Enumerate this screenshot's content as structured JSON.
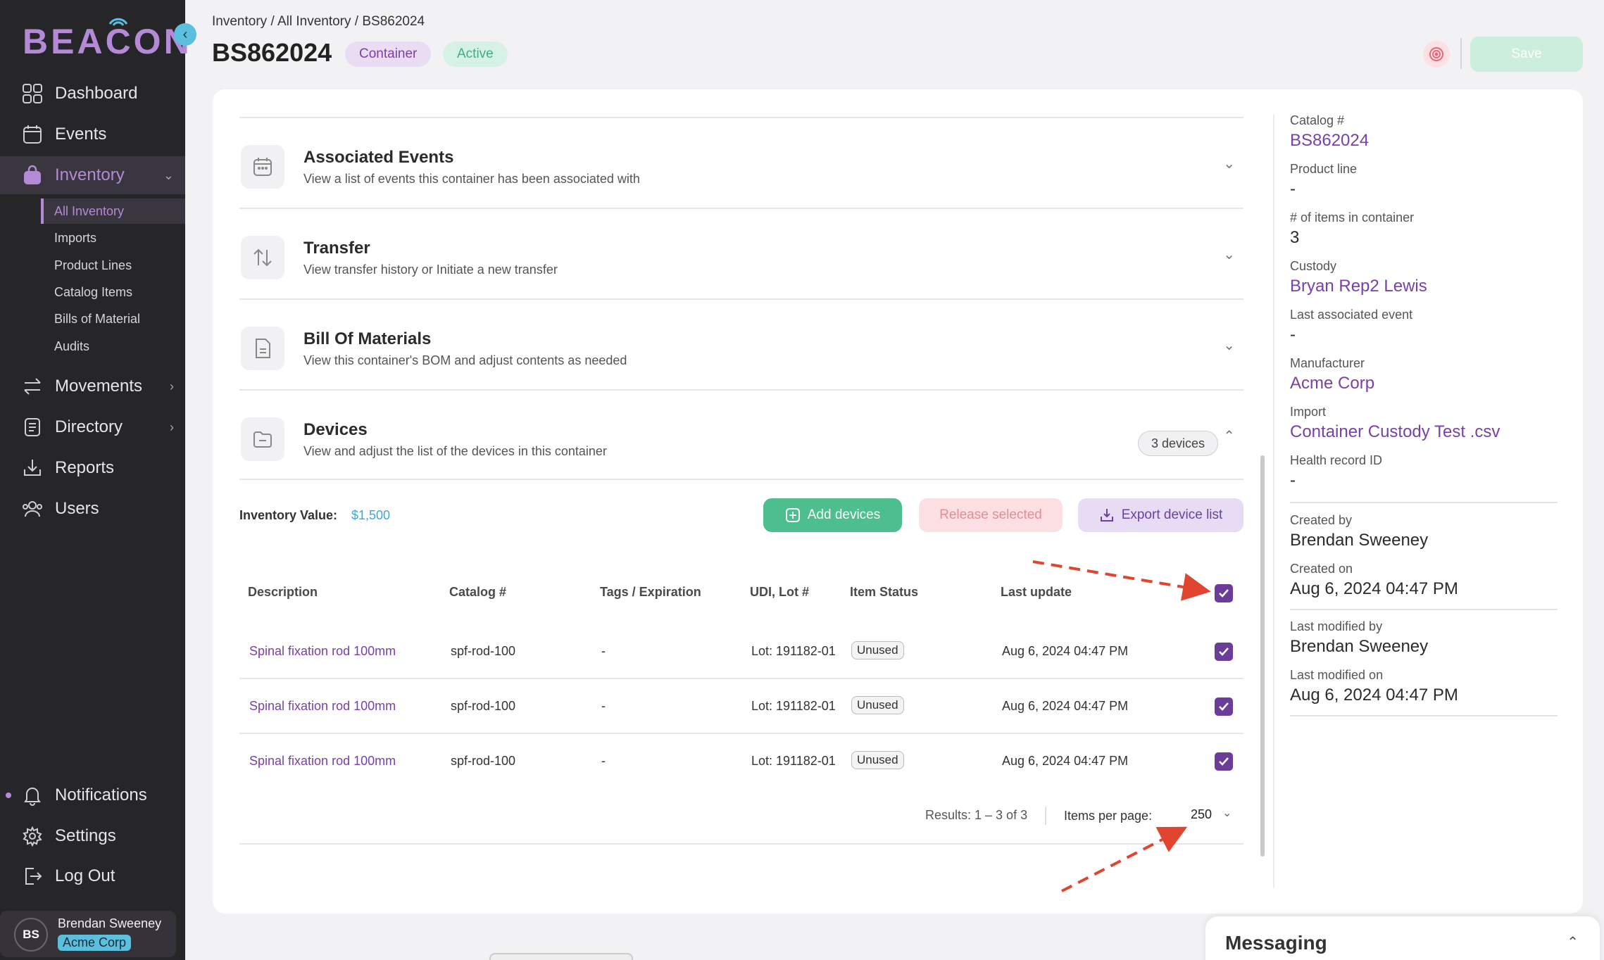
{
  "sidebar": {
    "logo": "BEACON",
    "nav": {
      "dashboard": "Dashboard",
      "events": "Events",
      "inventory": "Inventory",
      "movements": "Movements",
      "directory": "Directory",
      "reports": "Reports",
      "users": "Users",
      "notifications": "Notifications",
      "settings": "Settings",
      "logout": "Log Out"
    },
    "inventory_sub": [
      "All Inventory",
      "Imports",
      "Product Lines",
      "Catalog Items",
      "Bills of Material",
      "Audits"
    ],
    "user": {
      "initials": "BS",
      "name": "Brendan Sweeney",
      "org": "Acme Corp"
    }
  },
  "header": {
    "breadcrumb": [
      "Inventory",
      "All Inventory",
      "BS862024"
    ],
    "title": "BS862024",
    "type_badge": "Container",
    "status_badge": "Active",
    "save_label": "Save"
  },
  "sections": [
    {
      "title": "Associated Events",
      "desc": "View a list of events this container has been associated with"
    },
    {
      "title": "Transfer",
      "desc": "View transfer history or Initiate a new transfer"
    },
    {
      "title": "Bill Of Materials",
      "desc": "View this container's BOM and adjust contents as needed"
    },
    {
      "title": "Devices",
      "desc": "View and adjust the list of the devices in this container",
      "count": "3 devices"
    }
  ],
  "devices": {
    "inventory_label": "Inventory Value:",
    "inventory_value": "$1,500",
    "add_label": "Add devices",
    "release_label": "Release selected",
    "export_label": "Export device list",
    "columns": [
      "Description",
      "Catalog #",
      "Tags / Expiration",
      "UDI, Lot #",
      "Item Status",
      "Last update"
    ],
    "rows": [
      {
        "description": "Spinal fixation rod 100mm",
        "catalog": "spf-rod-100",
        "tags": "-",
        "lot": "Lot: 191182-01",
        "status": "Unused",
        "updated": "Aug 6, 2024 04:47 PM",
        "checked": true
      },
      {
        "description": "Spinal fixation rod 100mm",
        "catalog": "spf-rod-100",
        "tags": "-",
        "lot": "Lot: 191182-01",
        "status": "Unused",
        "updated": "Aug 6, 2024 04:47 PM",
        "checked": true
      },
      {
        "description": "Spinal fixation rod 100mm",
        "catalog": "spf-rod-100",
        "tags": "-",
        "lot": "Lot: 191182-01",
        "status": "Unused",
        "updated": "Aug 6, 2024 04:47 PM",
        "checked": true
      }
    ],
    "results": "Results: 1 – 3 of 3",
    "items_per_page_label": "Items per page:",
    "items_per_page": "250"
  },
  "details": {
    "catalog_label": "Catalog #",
    "catalog": "BS862024",
    "product_line_label": "Product line",
    "product_line": "-",
    "items_label": "# of items in container",
    "items": "3",
    "custody_label": "Custody",
    "custody": "Bryan Rep2 Lewis",
    "last_event_label": "Last associated event",
    "last_event": "-",
    "manufacturer_label": "Manufacturer",
    "manufacturer": "Acme Corp",
    "import_label": "Import",
    "import": "Container Custody Test .csv",
    "health_label": "Health record ID",
    "health": "-",
    "created_by_label": "Created by",
    "created_by": "Brendan Sweeney",
    "created_on_label": "Created on",
    "created_on": "Aug 6, 2024 04:47 PM",
    "modified_by_label": "Last modified by",
    "modified_by": "Brendan Sweeney",
    "modified_on_label": "Last modified on",
    "modified_on": "Aug 6, 2024 04:47 PM"
  },
  "messaging": {
    "title": "Messaging"
  },
  "colors": {
    "accent": "#7a3fa8",
    "sidebar": "#262528",
    "success": "#4dbf8f",
    "info": "#3fa7cf"
  }
}
